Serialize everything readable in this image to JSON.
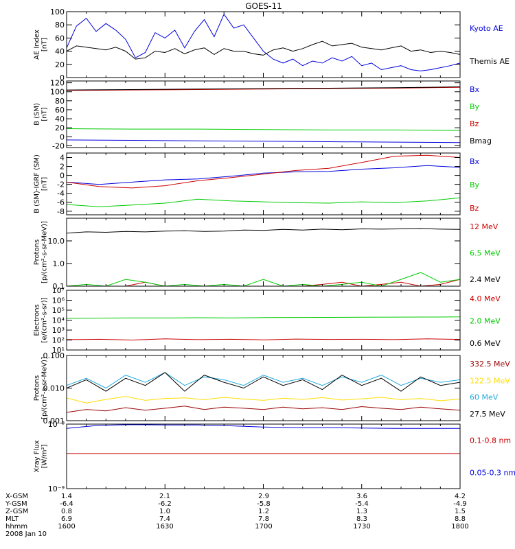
{
  "title": "GOES-11",
  "footer": {
    "rows": [
      {
        "label": "X-GSM",
        "values": [
          "1.4",
          "2.1",
          "2.9",
          "3.6",
          "4.2"
        ]
      },
      {
        "label": "Y-GSM",
        "values": [
          "-6.4",
          "-6.2",
          "-5.8",
          "-5.4",
          "-4.9"
        ]
      },
      {
        "label": "Z-GSM",
        "values": [
          "0.8",
          "1.0",
          "1.2",
          "1.3",
          "1.5"
        ]
      },
      {
        "label": "MLT",
        "values": [
          "6.9",
          "7.4",
          "7.8",
          "8.3",
          "8.8"
        ]
      },
      {
        "label": "hhmm",
        "values": [
          "1600",
          "1630",
          "1700",
          "1730",
          "1800"
        ]
      }
    ],
    "date": "2008 Jan 10"
  },
  "chart_data": [
    {
      "type": "line",
      "ylabel": [
        "AE Index",
        "[nT]"
      ],
      "scale": "linear",
      "ylim": [
        0,
        100
      ],
      "ticks": [
        0,
        20,
        40,
        60,
        80,
        100
      ],
      "tick_labels": [
        "0",
        "20",
        "40",
        "60",
        "80",
        "100"
      ],
      "x": [
        0,
        3,
        6,
        9,
        12,
        15,
        18,
        21,
        24,
        27,
        30,
        33,
        36,
        39,
        42,
        45,
        48,
        51,
        54,
        57,
        60,
        63,
        66,
        69,
        72,
        75,
        78,
        81,
        84,
        87,
        90,
        93,
        96,
        99,
        102,
        105,
        108,
        111,
        114,
        117,
        120
      ],
      "series": [
        {
          "name": "Kyoto AE",
          "color": "#0000dd",
          "values": [
            45,
            78,
            90,
            70,
            82,
            72,
            58,
            30,
            38,
            68,
            60,
            72,
            45,
            70,
            88,
            62,
            96,
            75,
            80,
            60,
            40,
            28,
            22,
            28,
            18,
            25,
            22,
            30,
            25,
            32,
            18,
            22,
            12,
            15,
            18,
            12,
            10,
            12,
            15,
            18,
            22
          ]
        },
        {
          "name": "Themis AE",
          "color": "#000000",
          "values": [
            40,
            48,
            46,
            44,
            42,
            46,
            40,
            28,
            30,
            40,
            38,
            44,
            36,
            42,
            45,
            35,
            44,
            40,
            40,
            36,
            34,
            42,
            45,
            40,
            44,
            50,
            55,
            48,
            50,
            52,
            46,
            44,
            42,
            45,
            48,
            40,
            42,
            38,
            40,
            38,
            35
          ]
        }
      ]
    },
    {
      "type": "line",
      "ylabel": [
        "B (SM)",
        "[nT]"
      ],
      "scale": "linear",
      "ylim": [
        -24,
        124
      ],
      "ticks": [
        -20,
        0,
        20,
        40,
        60,
        80,
        100,
        120
      ],
      "tick_labels": [
        "-20",
        "0",
        "20",
        "40",
        "60",
        "80",
        "100",
        "120"
      ],
      "x": [
        0,
        20,
        40,
        60,
        80,
        100,
        120
      ],
      "series": [
        {
          "name": "Bx",
          "color": "#0000dd",
          "values": [
            -7,
            -8,
            -9,
            -10,
            -11,
            -12,
            -13
          ]
        },
        {
          "name": "By",
          "color": "#00cc00",
          "values": [
            18,
            17,
            17,
            16,
            15,
            15,
            14
          ]
        },
        {
          "name": "Bz",
          "color": "#cc0000",
          "values": [
            103,
            104,
            105,
            106,
            107,
            108,
            110
          ]
        },
        {
          "name": "Bmag",
          "color": "#000000",
          "values": [
            104,
            105,
            106,
            107,
            108,
            109,
            111
          ]
        }
      ]
    },
    {
      "type": "line",
      "ylabel": [
        "B (SM)-IGRF (SM)",
        "[nT]"
      ],
      "scale": "linear",
      "ylim": [
        -8.8,
        5
      ],
      "ticks": [
        -8,
        -6,
        -4,
        -2,
        0,
        2,
        4
      ],
      "tick_labels": [
        "-8",
        "-6",
        "-4",
        "-2",
        "0",
        "2",
        "4"
      ],
      "x": [
        0,
        10,
        20,
        30,
        40,
        50,
        60,
        70,
        80,
        90,
        100,
        110,
        120
      ],
      "series": [
        {
          "name": "Bx",
          "color": "#0000dd",
          "values": [
            -1.5,
            -2.0,
            -1.5,
            -1.0,
            -0.8,
            -0.2,
            0.5,
            0.8,
            0.9,
            1.4,
            1.7,
            2.2,
            1.8
          ]
        },
        {
          "name": "By",
          "color": "#00cc00",
          "values": [
            -6.5,
            -7.0,
            -6.6,
            -6.2,
            -5.3,
            -5.7,
            -5.9,
            -6.1,
            -6.2,
            -5.9,
            -6.1,
            -5.7,
            -5.0
          ]
        },
        {
          "name": "Bz",
          "color": "#cc0000",
          "values": [
            -1.5,
            -2.5,
            -2.8,
            -2.3,
            -1.2,
            -0.5,
            0.3,
            1.1,
            1.6,
            2.9,
            4.3,
            4.5,
            4.0
          ]
        }
      ]
    },
    {
      "type": "line",
      "ylabel": [
        "Protons",
        "[p/(cm²-s-sr-MeV)]"
      ],
      "scale": "log",
      "ylim": [
        0.1,
        100
      ],
      "ticks": [
        0.1,
        1,
        10
      ],
      "tick_labels": [
        "0.1",
        "1.0",
        "10.0"
      ],
      "x": [
        0,
        6,
        12,
        18,
        24,
        30,
        36,
        42,
        48,
        54,
        60,
        66,
        72,
        78,
        84,
        90,
        96,
        102,
        108,
        114,
        120
      ],
      "series": [
        {
          "name": "12 MeV",
          "color": "#cc0000",
          "values": [
            0.1,
            0.1,
            0.1,
            0.1,
            0.15,
            0.1,
            0.1,
            0.1,
            0.1,
            0.1,
            0.1,
            0.1,
            0.1,
            0.12,
            0.15,
            0.1,
            0.12,
            0.15,
            0.1,
            0.12,
            0.2
          ]
        },
        {
          "name": "6.5 MeV",
          "color": "#00cc00",
          "values": [
            0.1,
            0.12,
            0.1,
            0.2,
            0.15,
            0.1,
            0.12,
            0.1,
            0.12,
            0.1,
            0.2,
            0.1,
            0.12,
            0.1,
            0.12,
            0.15,
            0.1,
            0.2,
            0.4,
            0.15,
            0.2
          ]
        },
        {
          "name": "2.4 MeV",
          "color": "#000000",
          "values": [
            22,
            25,
            24,
            26,
            25,
            27,
            28,
            26,
            27,
            30,
            29,
            32,
            30,
            33,
            31,
            34,
            33,
            34,
            35,
            33,
            32
          ]
        }
      ]
    },
    {
      "type": "line",
      "ylabel": [
        "Electrons",
        "[e/(cm²-s-sr)]"
      ],
      "scale": "log",
      "ylim": [
        10,
        10000000
      ],
      "ticks": [
        10,
        100,
        1000,
        10000,
        100000,
        1000000,
        10000000
      ],
      "tick_labels": [
        "10¹",
        "10²",
        "10³",
        "10⁴",
        "10⁵",
        "10⁶",
        "10⁷"
      ],
      "x": [
        0,
        10,
        20,
        30,
        40,
        50,
        60,
        70,
        80,
        90,
        100,
        110,
        120
      ],
      "series": [
        {
          "name": "4.0 MeV",
          "color": "#cc0000",
          "values": [
            110,
            120,
            100,
            130,
            110,
            120,
            105,
            125,
            115,
            120,
            110,
            130,
            115
          ]
        },
        {
          "name": "2.0 MeV",
          "color": "#00cc00",
          "values": [
            15000,
            16000,
            17000,
            16500,
            17500,
            17000,
            18000,
            18500,
            19000,
            19500,
            20000,
            20500,
            21000
          ]
        },
        {
          "name": "0.6 MeV",
          "color": "#000000",
          "values": [
            20000000,
            20000000,
            20000000,
            20000000,
            20000000,
            20000000,
            20000000,
            20000000,
            20000000,
            20000000,
            20000000,
            20000000,
            20000000
          ]
        }
      ]
    },
    {
      "type": "line",
      "ylabel": [
        "Protons",
        "[p/(cm²-s-sr-MeV)]"
      ],
      "scale": "log",
      "ylim": [
        0.001,
        0.1
      ],
      "ticks": [
        0.001,
        0.01,
        0.1
      ],
      "tick_labels": [
        "0.001",
        "0.010",
        "0.100"
      ],
      "x": [
        0,
        6,
        12,
        18,
        24,
        30,
        36,
        42,
        48,
        54,
        60,
        66,
        72,
        78,
        84,
        90,
        96,
        102,
        108,
        114,
        120
      ],
      "series": [
        {
          "name": "332.5 MeV",
          "color": "#990000",
          "values": [
            0.0018,
            0.0022,
            0.002,
            0.0025,
            0.0021,
            0.0024,
            0.0028,
            0.0022,
            0.0026,
            0.0024,
            0.0022,
            0.0026,
            0.0023,
            0.0025,
            0.0022,
            0.0027,
            0.0024,
            0.0022,
            0.0026,
            0.0023,
            0.0021
          ]
        },
        {
          "name": "122.5 MeV",
          "color": "#ffdd00",
          "values": [
            0.005,
            0.0035,
            0.0045,
            0.0055,
            0.0042,
            0.0048,
            0.005,
            0.0044,
            0.0052,
            0.0046,
            0.0042,
            0.0049,
            0.0045,
            0.0051,
            0.0043,
            0.0047,
            0.0052,
            0.0044,
            0.0048,
            0.0041,
            0.0046
          ]
        },
        {
          "name": "60 MeV",
          "color": "#22aadd",
          "values": [
            0.012,
            0.02,
            0.01,
            0.025,
            0.015,
            0.03,
            0.012,
            0.022,
            0.018,
            0.012,
            0.025,
            0.015,
            0.02,
            0.012,
            0.022,
            0.015,
            0.025,
            0.012,
            0.02,
            0.015,
            0.018
          ]
        },
        {
          "name": "27.5 MeV",
          "color": "#000000",
          "values": [
            0.01,
            0.018,
            0.008,
            0.02,
            0.012,
            0.03,
            0.008,
            0.025,
            0.015,
            0.01,
            0.022,
            0.012,
            0.018,
            0.009,
            0.025,
            0.012,
            0.02,
            0.008,
            0.022,
            0.012,
            0.015
          ]
        }
      ]
    },
    {
      "type": "line",
      "ylabel": [
        "Xray Flux",
        "[W/m²]"
      ],
      "scale": "log",
      "ylim": [
        1e-09,
        1e-08
      ],
      "ticks": [
        1e-09,
        1e-08
      ],
      "tick_labels": [
        "10⁻⁹",
        "10⁻⁸"
      ],
      "x": [
        0,
        10,
        20,
        30,
        40,
        50,
        60,
        70,
        80,
        90,
        100,
        110,
        120
      ],
      "series": [
        {
          "name": "0.1-0.8 nm",
          "color": "#cc0000",
          "values": [
            3.5e-09,
            3.5e-09,
            3.5e-09,
            3.5e-09,
            3.5e-09,
            3.5e-09,
            3.5e-09,
            3.5e-09,
            3.5e-09,
            3.5e-09,
            3.5e-09,
            3.5e-09,
            3.5e-09
          ]
        },
        {
          "name": "0.05-0.3 nm",
          "color": "#0000dd",
          "values": [
            8.6e-09,
            9.6e-09,
            9.8e-09,
            9.7e-09,
            9.7e-09,
            9.4e-09,
            9e-09,
            8.8e-09,
            8.8e-09,
            8.7e-09,
            8.6e-09,
            8.6e-09,
            8.6e-09
          ]
        }
      ]
    }
  ]
}
